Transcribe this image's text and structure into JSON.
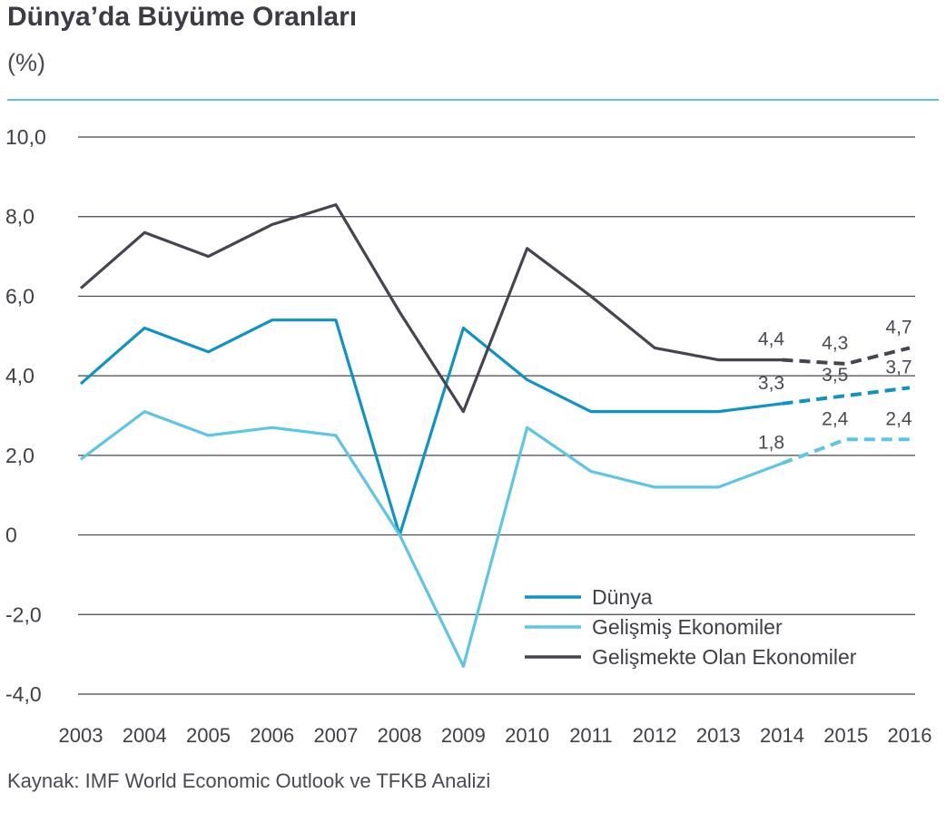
{
  "title": "Dünya’da Büyüme Oranları",
  "subtitle": "(%)",
  "source": "Kaynak: IMF World Economic Outlook ve TFKB Analizi",
  "colors": {
    "dunya": "#0f93c6",
    "gelismis": "#5cc6e4",
    "gelismekte": "#45454f",
    "grid": "#45454f",
    "rule": "#5cc1df"
  },
  "chart_data": {
    "type": "line",
    "title": "Dünya’da Büyüme Oranları",
    "ylabel": "(%)",
    "x": [
      "2003",
      "2004",
      "2005",
      "2006",
      "2007",
      "2008",
      "2009",
      "2010",
      "2011",
      "2012",
      "2013",
      "2014",
      "2015",
      "2016"
    ],
    "ylim": [
      -4.0,
      10.0
    ],
    "yticks": [
      "10,0",
      "8,0",
      "6,0",
      "4,0",
      "2,0",
      "0",
      "-2,0",
      "-4,0"
    ],
    "grid": true,
    "legend": "bottom-right",
    "forecast_from": "2014",
    "series": [
      {
        "name": "Dünya",
        "color_key": "dunya",
        "values": [
          3.8,
          5.2,
          4.6,
          5.4,
          5.4,
          0.0,
          5.2,
          3.9,
          3.1,
          3.1,
          3.1,
          3.3,
          3.5,
          3.7
        ],
        "labels": {
          "2014": "3,3",
          "2015": "3,5",
          "2016": "3,7"
        }
      },
      {
        "name": "Gelişmiş Ekonomiler",
        "color_key": "gelismis",
        "values": [
          1.9,
          3.1,
          2.5,
          2.7,
          2.5,
          0.0,
          -3.3,
          2.7,
          1.6,
          1.2,
          1.2,
          1.8,
          2.4,
          2.4
        ],
        "labels": {
          "2014": "1,8",
          "2015": "2,4",
          "2016": "2,4"
        }
      },
      {
        "name": "Gelişmekte Olan Ekonomiler",
        "color_key": "gelismekte",
        "values": [
          6.2,
          7.6,
          7.0,
          7.8,
          8.3,
          5.6,
          3.1,
          7.2,
          6.0,
          4.7,
          4.4,
          4.4,
          4.3,
          4.7
        ],
        "labels": {
          "2014": "4,4",
          "2015": "4,3",
          "2016": "4,7"
        }
      }
    ]
  }
}
